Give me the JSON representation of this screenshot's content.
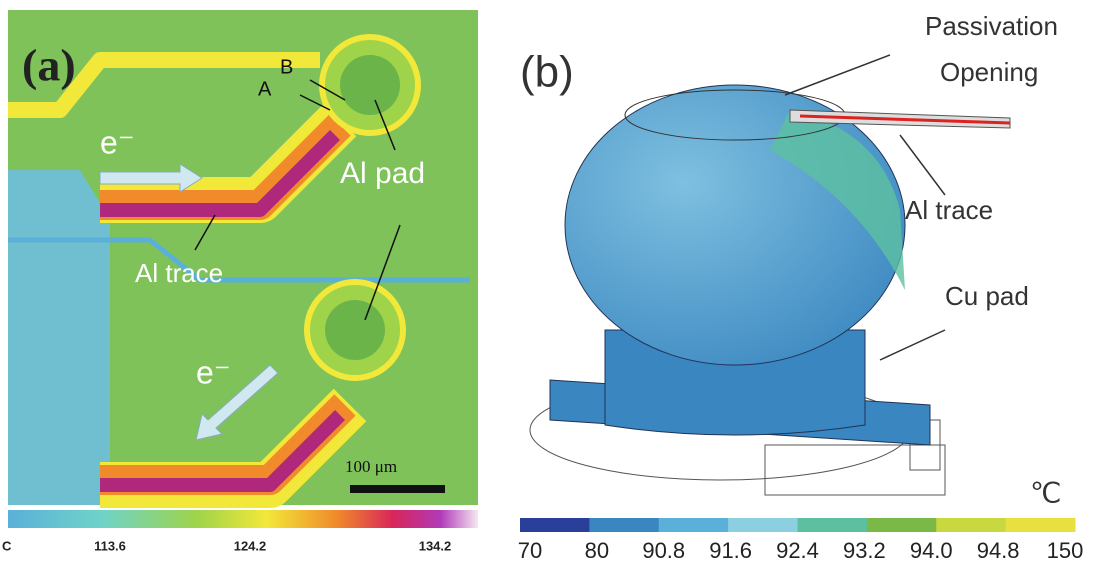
{
  "panel_a": {
    "label": "(a)",
    "point_a": "A",
    "point_b": "B",
    "electron_top": "e⁻",
    "electron_bottom": "e⁻",
    "pad": "Al pad",
    "trace": "Al trace",
    "scale": "100 μm",
    "colorbar": {
      "cut_label": "C",
      "labels": [
        "113.6",
        "124.2",
        "134.2"
      ]
    }
  },
  "panel_b": {
    "label": "(b)",
    "passivation": [
      "Passivation",
      "Opening"
    ],
    "trace": "Al trace",
    "pad": "Cu pad",
    "unit": "℃",
    "colorbar": {
      "labels": [
        "70",
        "80",
        "90.8",
        "91.6",
        "92.4",
        "93.2",
        "94.0",
        "94.8",
        "150"
      ]
    }
  }
}
